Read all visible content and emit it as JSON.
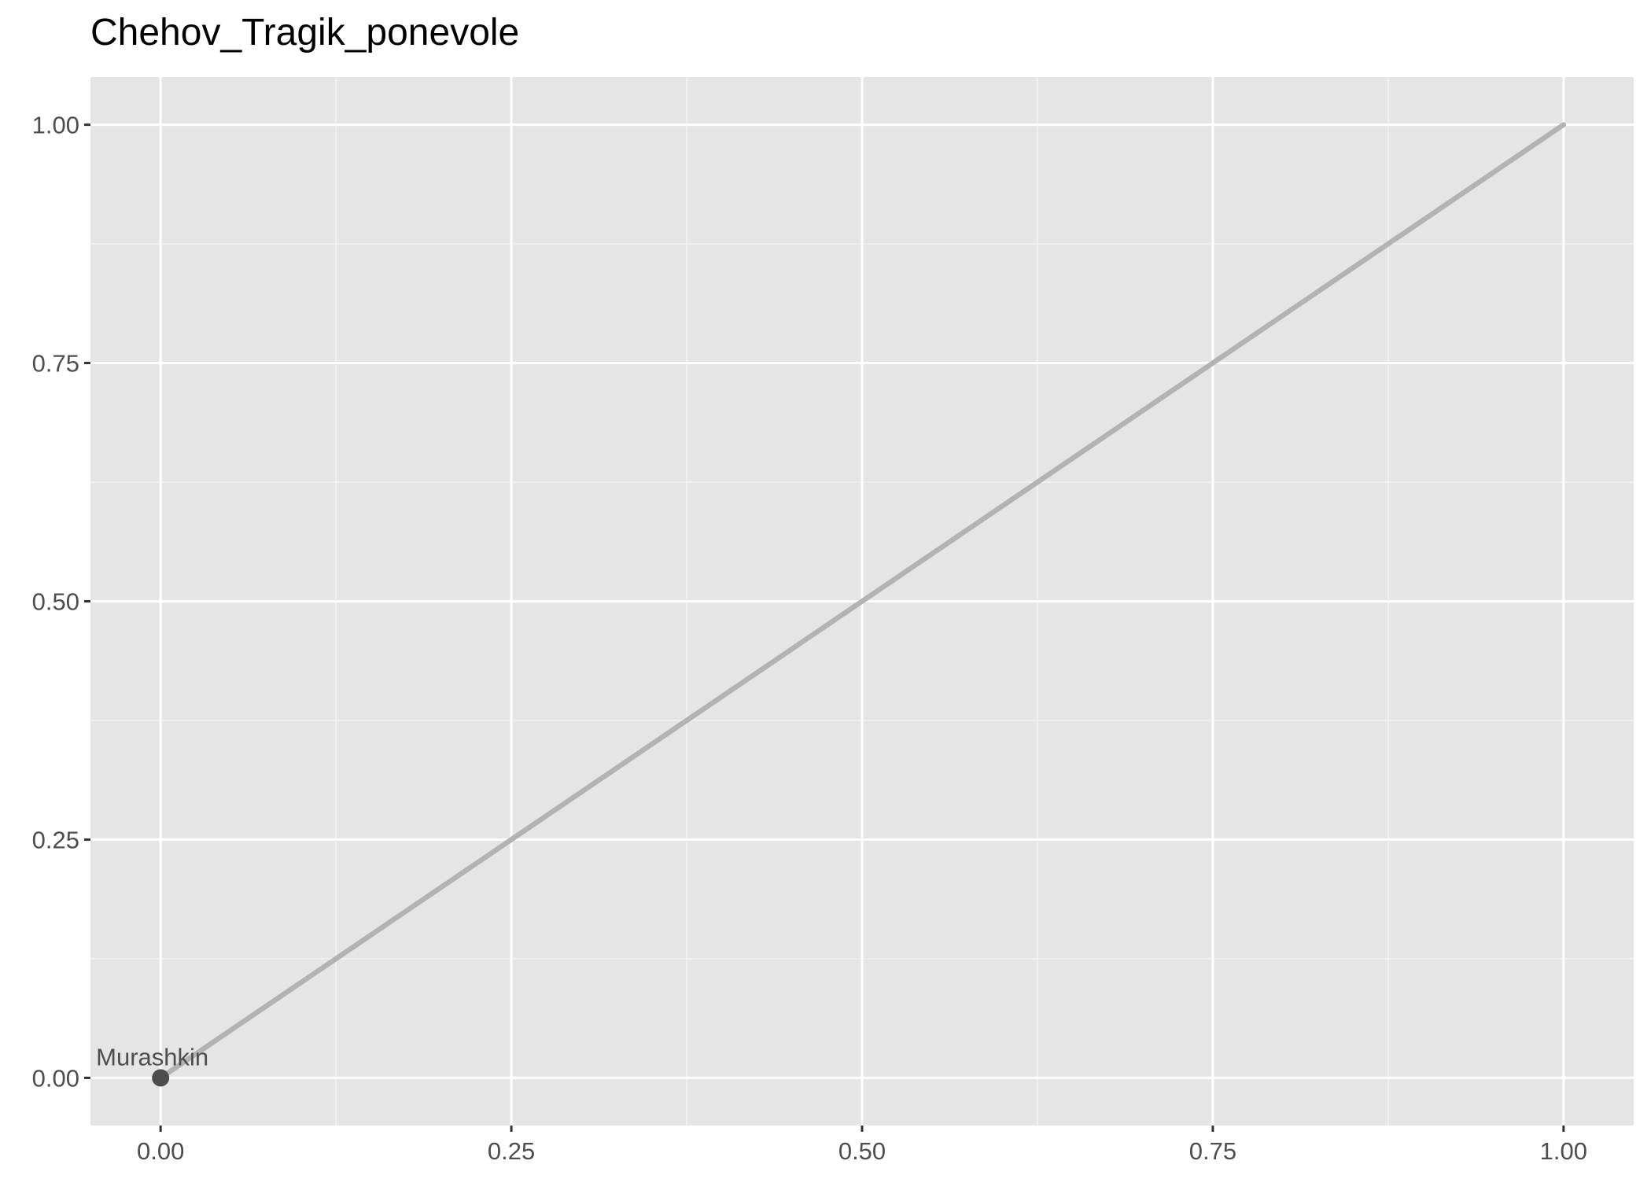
{
  "chart_data": {
    "type": "scatter",
    "title": "Chehov_Tragik_ponevole",
    "xlabel": "",
    "ylabel": "",
    "xlim": [
      -0.05,
      1.05
    ],
    "ylim": [
      -0.05,
      1.05
    ],
    "x_ticks": [
      0,
      0.25,
      0.5,
      0.75,
      1
    ],
    "x_tick_labels": [
      "0.00",
      "0.25",
      "0.50",
      "0.75",
      "1.00"
    ],
    "y_ticks": [
      0,
      0.25,
      0.5,
      0.75,
      1
    ],
    "y_tick_labels": [
      "0.00",
      "0.25",
      "0.50",
      "0.75",
      "1.00"
    ],
    "grid": true,
    "reference_line": {
      "x": [
        0,
        1
      ],
      "y": [
        0,
        1
      ],
      "color": "#b3b3b3"
    },
    "points": [
      {
        "label": "Murashkin",
        "x": 0,
        "y": 0
      }
    ],
    "colors": {
      "panel_background": "#e5e5e5",
      "grid_major": "#ffffff",
      "grid_minor": "#f2f2f2",
      "point": "#4d4d4d",
      "point_label": "#4d4d4d",
      "tick_label": "#4d4d4d",
      "tick_mark": "#333333"
    }
  }
}
